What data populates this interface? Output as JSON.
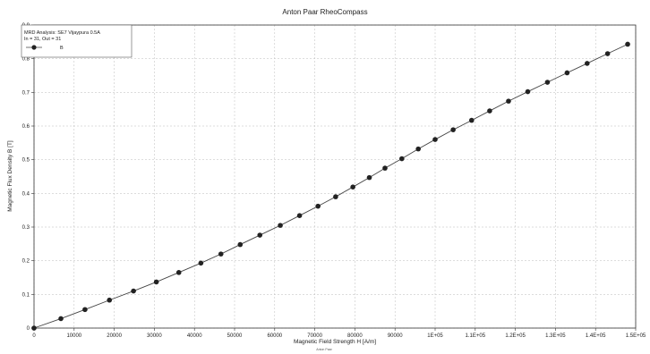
{
  "chart_data": {
    "type": "scatter",
    "title": "Anton Paar RheoCompass",
    "xlabel": "Magnetic Field Strength  H  [A/m]",
    "ylabel": "Magnetic Flux Density  B  [T]",
    "xlim": [
      0,
      150000
    ],
    "ylim": [
      0,
      0.9
    ],
    "grid": true,
    "legend_position": "top-left",
    "footer": "Anton Paar",
    "x_ticks": [
      {
        "value": 0,
        "label": "0"
      },
      {
        "value": 10000,
        "label": "10000"
      },
      {
        "value": 20000,
        "label": "20000"
      },
      {
        "value": 30000,
        "label": "30000"
      },
      {
        "value": 40000,
        "label": "40000"
      },
      {
        "value": 50000,
        "label": "50000"
      },
      {
        "value": 60000,
        "label": "60000"
      },
      {
        "value": 70000,
        "label": "70000"
      },
      {
        "value": 80000,
        "label": "80000"
      },
      {
        "value": 90000,
        "label": "90000"
      },
      {
        "value": 100000,
        "label": "1E+05"
      },
      {
        "value": 110000,
        "label": "1.1E+05"
      },
      {
        "value": 120000,
        "label": "1.2E+05"
      },
      {
        "value": 130000,
        "label": "1.3E+05"
      },
      {
        "value": 140000,
        "label": "1.4E+05"
      },
      {
        "value": 150000,
        "label": "1.5E+05"
      }
    ],
    "y_ticks": [
      {
        "value": 0,
        "label": "0"
      },
      {
        "value": 0.1,
        "label": "0.1"
      },
      {
        "value": 0.2,
        "label": "0.2"
      },
      {
        "value": 0.3,
        "label": "0.3"
      },
      {
        "value": 0.4,
        "label": "0.4"
      },
      {
        "value": 0.5,
        "label": "0.5"
      },
      {
        "value": 0.6,
        "label": "0.6"
      },
      {
        "value": 0.7,
        "label": "0.7"
      },
      {
        "value": 0.8,
        "label": "0.8"
      },
      {
        "value": 0.9,
        "label": "0.9"
      }
    ],
    "legend": {
      "lines": [
        "MRD Analysis: SE7 Vijaypura 0.5A",
        "In = 31, Out = 31"
      ],
      "entry": "B"
    },
    "series": [
      {
        "name": "B",
        "color": "#222222",
        "x": [
          0,
          6700,
          12700,
          18800,
          24800,
          30500,
          36100,
          41600,
          46600,
          51400,
          56300,
          61400,
          66200,
          70800,
          75200,
          79500,
          83600,
          87500,
          91700,
          95800,
          100000,
          104500,
          109100,
          113600,
          118300,
          123100,
          128000,
          132900,
          137900,
          143000,
          148000
        ],
        "y": [
          0,
          0.028,
          0.055,
          0.083,
          0.11,
          0.137,
          0.165,
          0.193,
          0.22,
          0.248,
          0.276,
          0.305,
          0.334,
          0.362,
          0.39,
          0.419,
          0.447,
          0.475,
          0.503,
          0.532,
          0.56,
          0.589,
          0.617,
          0.645,
          0.674,
          0.702,
          0.73,
          0.758,
          0.786,
          0.815,
          0.843
        ]
      }
    ]
  }
}
